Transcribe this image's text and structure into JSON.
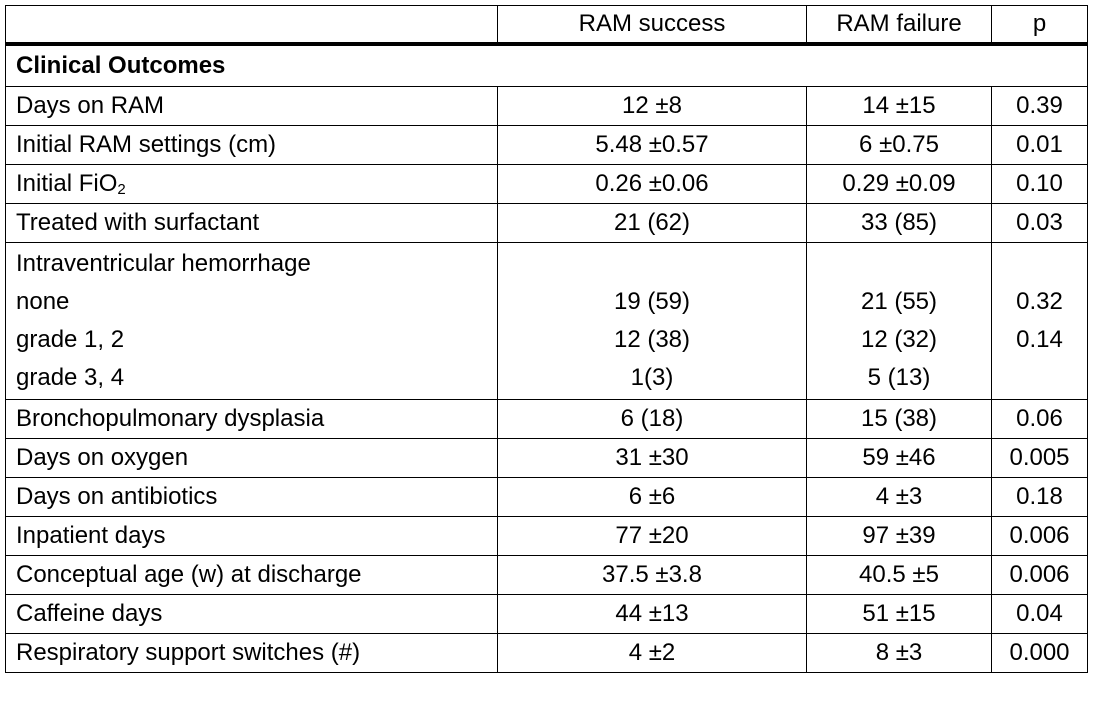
{
  "header": {
    "col1": "RAM success",
    "col2": "RAM failure",
    "col3": "p"
  },
  "section": {
    "title": "Clinical Outcomes"
  },
  "rows": [
    {
      "label": "Days on RAM",
      "success": "12 ±8",
      "failure": "14 ±15",
      "p": "0.39"
    },
    {
      "label": "Initial RAM settings (cm)",
      "success": "5.48 ±0.57",
      "failure": "6 ±0.75",
      "p": "0.01"
    },
    {
      "label_main": "Initial FiO",
      "label_sub": "2",
      "success": "0.26 ±0.06",
      "failure": "0.29 ±0.09",
      "p": "0.10"
    },
    {
      "label": "Treated with surfactant",
      "success": "21 (62)",
      "failure": "33 (85)",
      "p": "0.03"
    },
    {
      "label": "Bronchopulmonary dysplasia",
      "success": "6 (18)",
      "failure": "15 (38)",
      "p": "0.06"
    },
    {
      "label": "Days on oxygen",
      "success": "31 ±30",
      "failure": "59 ±46",
      "p": "0.005"
    },
    {
      "label": "Days on antibiotics",
      "success": "6 ±6",
      "failure": "4 ±3",
      "p": "0.18"
    },
    {
      "label": "Inpatient days",
      "success": "77 ±20",
      "failure": "97 ±39",
      "p": "0.006"
    },
    {
      "label": "Conceptual age (w) at discharge",
      "success": "37.5 ±3.8",
      "failure": "40.5 ±5",
      "p": "0.006"
    },
    {
      "label": "Caffeine days",
      "success": "44 ±13",
      "failure": "51 ±15",
      "p": "0.04"
    },
    {
      "label": "Respiratory support switches (#)",
      "success": "4 ±2",
      "failure": "8 ±3",
      "p": "0.000"
    }
  ],
  "ivh": {
    "label": "Intraventricular hemorrhage",
    "subrows": [
      {
        "label": "none",
        "success": "19 (59)",
        "failure": "21 (55)",
        "p": "0.32"
      },
      {
        "label": "grade 1, 2",
        "success": "12 (38)",
        "failure": "12 (32)",
        "p": "0.14"
      },
      {
        "label": "grade 3, 4",
        "success": "1(3)",
        "failure": "5 (13)",
        "p": ""
      }
    ]
  }
}
